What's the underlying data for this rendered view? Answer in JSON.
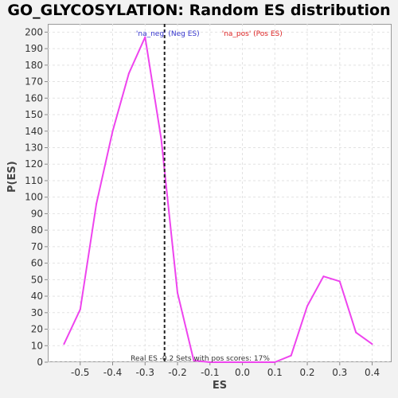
{
  "chart_data": {
    "type": "line",
    "title": "GO_GLYCOSYLATION: Random ES distribution",
    "xlabel": "ES",
    "ylabel": "P(ES)",
    "xlim": [
      -0.6,
      0.46
    ],
    "ylim": [
      0,
      205
    ],
    "xticks": [
      -0.5,
      -0.4,
      -0.3,
      -0.2,
      -0.1,
      0.0,
      0.1,
      0.2,
      0.3,
      0.4
    ],
    "xtick_labels": [
      "-0.5",
      "-0.4",
      "-0.3",
      "-0.2",
      "-0.1",
      "0.0",
      "0.1",
      "0.2",
      "0.3",
      "0.4"
    ],
    "yticks": [
      0,
      10,
      20,
      30,
      40,
      50,
      60,
      70,
      80,
      90,
      100,
      110,
      120,
      130,
      140,
      150,
      160,
      170,
      180,
      190,
      200
    ],
    "grid": true,
    "series": [
      {
        "color": "#ee44ee",
        "x": [
          -0.55,
          -0.5,
          -0.45,
          -0.4,
          -0.35,
          -0.3,
          -0.25,
          -0.2,
          -0.15,
          -0.1,
          -0.05,
          0.0,
          0.05,
          0.1,
          0.15,
          0.2,
          0.25,
          0.3,
          0.35,
          0.4
        ],
        "y": [
          11,
          32,
          96,
          140,
          175,
          197,
          135,
          42,
          1,
          0,
          0,
          0,
          0,
          0,
          4,
          34,
          52,
          49,
          18,
          11
        ]
      }
    ],
    "reference_line": {
      "x": -0.24,
      "style": "dashed",
      "color": "#222222"
    },
    "legend": [
      {
        "text": "'na_neg' (Neg ES)",
        "color": "#3333cc"
      },
      {
        "text": "'na_pos' (Pos ES)",
        "color": "#dd2222"
      }
    ],
    "annotation": "Real ES -0.2   Sets with pos scores: 17%"
  }
}
